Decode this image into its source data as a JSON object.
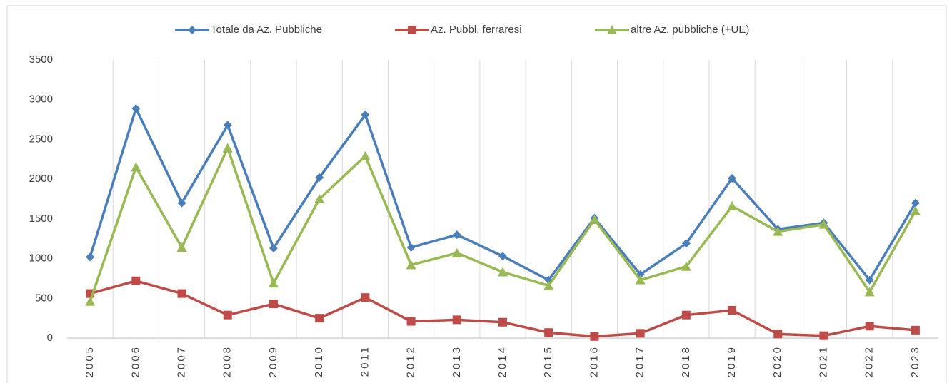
{
  "chart_data": {
    "type": "line",
    "categories": [
      "2005",
      "2006",
      "2007",
      "2008",
      "2009",
      "2010",
      "2011",
      "2012",
      "2013",
      "2014",
      "2015",
      "2016",
      "2017",
      "2018",
      "2019",
      "2020",
      "2021",
      "2022",
      "2023"
    ],
    "series": [
      {
        "name": "Totale da Az. Pubbliche",
        "color": "#4a7ebb",
        "marker": "diamond",
        "values": [
          1020,
          2890,
          1700,
          2680,
          1130,
          2020,
          2810,
          1140,
          1300,
          1030,
          730,
          1510,
          800,
          1190,
          2010,
          1370,
          1450,
          730,
          1700
        ]
      },
      {
        "name": "Az. Pubbl. ferraresi",
        "color": "#be4b48",
        "marker": "square",
        "values": [
          560,
          720,
          560,
          290,
          430,
          250,
          510,
          210,
          230,
          200,
          70,
          20,
          60,
          290,
          350,
          50,
          30,
          150,
          100
        ]
      },
      {
        "name": "altre Az. pubbliche (+UE)",
        "color": "#98b954",
        "marker": "triangle",
        "values": [
          460,
          2150,
          1140,
          2390,
          690,
          1750,
          2290,
          920,
          1070,
          830,
          660,
          1490,
          730,
          900,
          1660,
          1340,
          1430,
          580,
          1600
        ]
      }
    ],
    "ylim": [
      0,
      3500
    ],
    "yticks": [
      0,
      500,
      1000,
      1500,
      2000,
      2500,
      3000,
      3500
    ],
    "grid": true,
    "legend": "top"
  }
}
